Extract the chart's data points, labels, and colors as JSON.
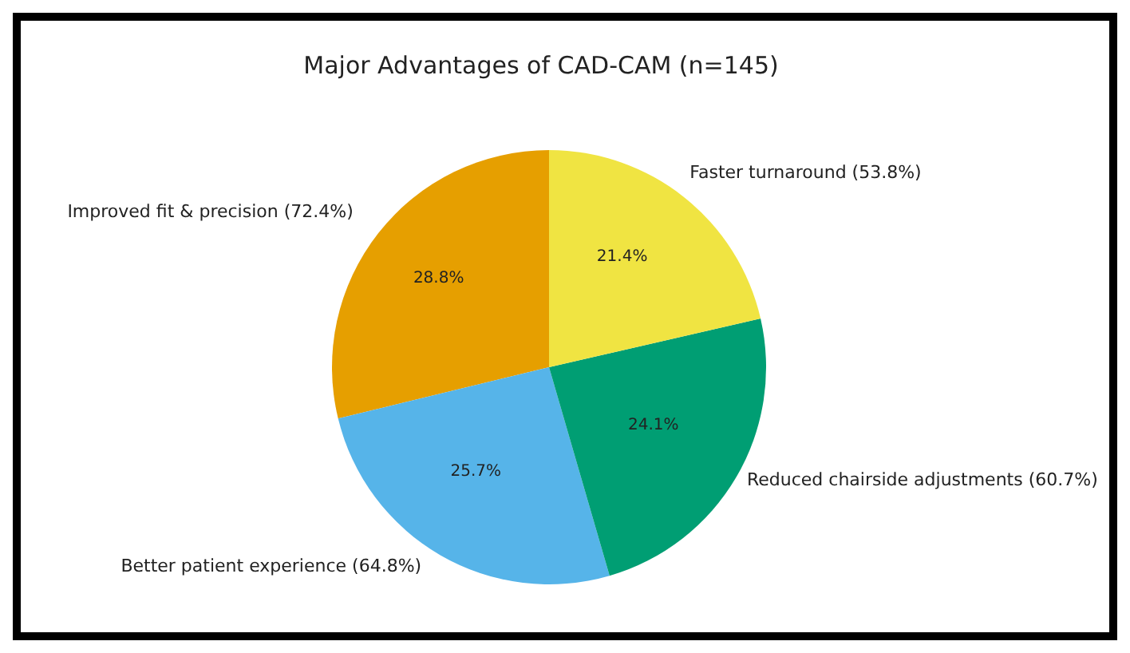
{
  "chart_data": {
    "type": "pie",
    "title": "Major Advantages of CAD-CAM (n=145)",
    "categories": [
      "Improved fit & precision (72.4%)",
      "Better patient experience (64.8%)",
      "Reduced chairside adjustments (60.7%)",
      "Faster turnaround (53.8%)"
    ],
    "values": [
      28.8,
      25.7,
      24.1,
      21.4
    ],
    "value_labels": [
      "28.8%",
      "25.7%",
      "24.1%",
      "21.4%"
    ],
    "colors": [
      "#e69f00",
      "#56b4e9",
      "#009e73",
      "#f0e442"
    ]
  }
}
